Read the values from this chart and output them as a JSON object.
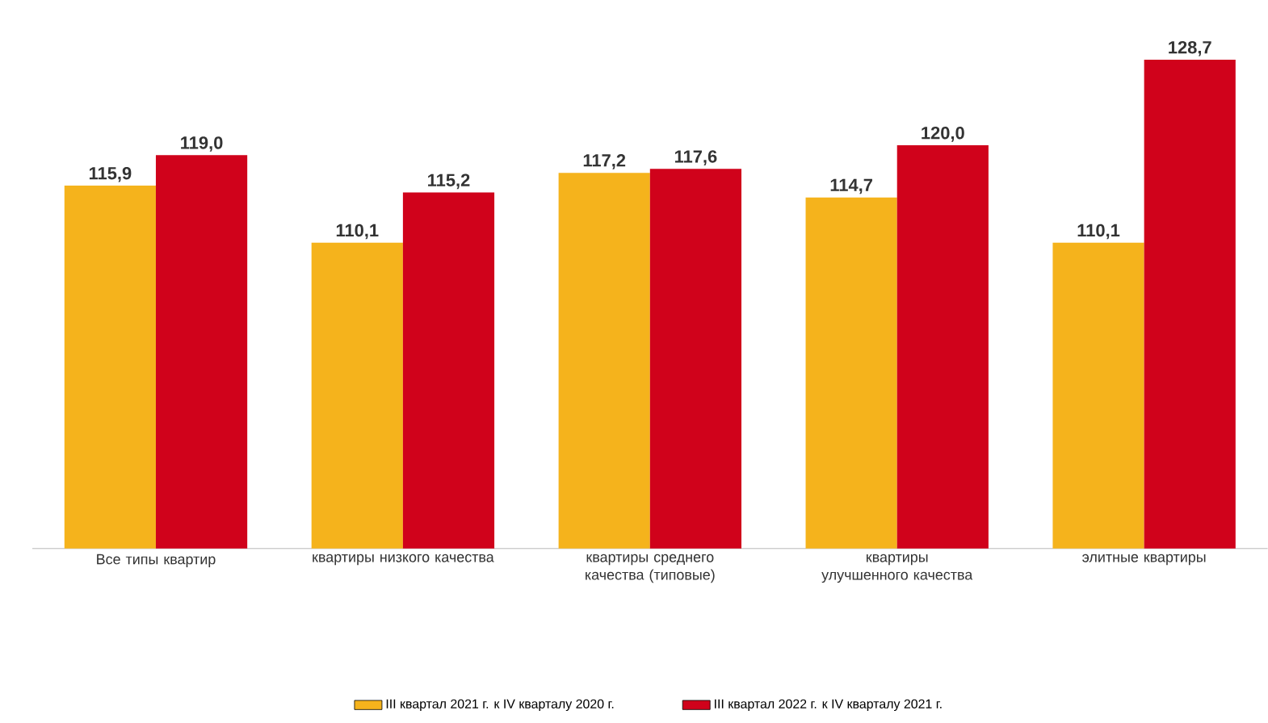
{
  "chart_data": {
    "type": "bar",
    "categories": [
      "Все типы квартир",
      "квартиры низкого качества",
      "квартиры среднего качества (типовые)",
      "квартиры улучшенного качества",
      "элитные квартиры"
    ],
    "series": [
      {
        "name": "III квартал 2021 г. к IV кварталу 2020 г.",
        "color": "#f5b31c",
        "values": [
          115.9,
          110.1,
          117.2,
          114.7,
          110.1
        ],
        "value_labels": [
          "115,9",
          "110,1",
          "117,2",
          "114,7",
          "110,1"
        ]
      },
      {
        "name": "III квартал 2022 г. к IV кварталу 2021 г.",
        "color": "#d0021b",
        "values": [
          119.0,
          115.2,
          117.6,
          120.0,
          128.7
        ],
        "value_labels": [
          "119,0",
          "115,2",
          "117,6",
          "120,0",
          "128,7"
        ]
      }
    ],
    "ylim": [
      79,
      128.7
    ],
    "legend": "bottom",
    "tick_labels": "x"
  }
}
